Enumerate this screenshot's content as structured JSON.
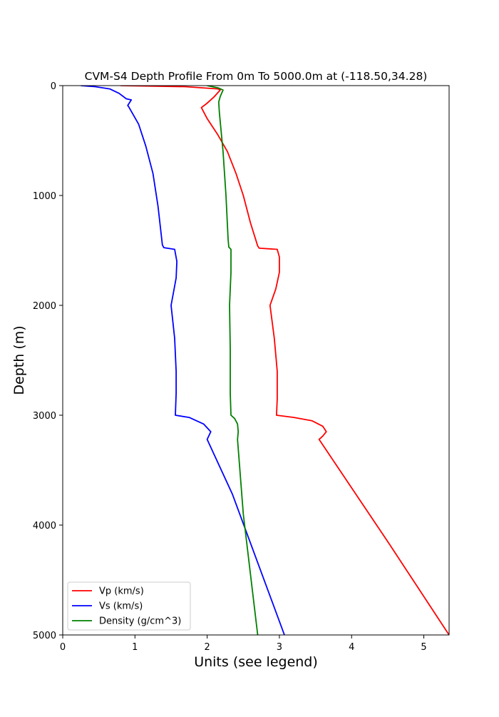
{
  "chart_data": {
    "type": "line",
    "title": "CVM-S4 Depth Profile From 0m To 5000.0m at (-118.50,34.28)",
    "xlabel": "Units (see legend)",
    "ylabel": "Depth (m)",
    "xlim": [
      0,
      5.35
    ],
    "ylim": [
      0,
      5000
    ],
    "y_inverted": true,
    "grid": false,
    "legend_position": "lower-left",
    "x_ticks": [
      0,
      1,
      2,
      3,
      4,
      5
    ],
    "x_tick_labels": [
      "0",
      "1",
      "2",
      "3",
      "4",
      "5"
    ],
    "y_ticks": [
      0,
      1000,
      2000,
      3000,
      4000,
      5000
    ],
    "y_tick_labels": [
      "0",
      "1000",
      "2000",
      "3000",
      "4000",
      "5000"
    ],
    "series": [
      {
        "name": "Vp (km/s)",
        "color": "#ff0000",
        "points": [
          [
            0.8,
            0
          ],
          [
            1.7,
            10
          ],
          [
            2.15,
            30
          ],
          [
            2.18,
            40
          ],
          [
            2.1,
            100
          ],
          [
            2.0,
            160
          ],
          [
            1.92,
            200
          ],
          [
            2.0,
            300
          ],
          [
            2.15,
            450
          ],
          [
            2.28,
            600
          ],
          [
            2.4,
            800
          ],
          [
            2.5,
            1000
          ],
          [
            2.6,
            1250
          ],
          [
            2.7,
            1460
          ],
          [
            2.72,
            1480
          ],
          [
            2.97,
            1490
          ],
          [
            3.0,
            1560
          ],
          [
            3.0,
            1700
          ],
          [
            2.95,
            1850
          ],
          [
            2.87,
            2000
          ],
          [
            2.93,
            2300
          ],
          [
            2.97,
            2600
          ],
          [
            2.97,
            2850
          ],
          [
            2.96,
            3000
          ],
          [
            3.2,
            3020
          ],
          [
            3.45,
            3050
          ],
          [
            3.6,
            3100
          ],
          [
            3.65,
            3150
          ],
          [
            3.6,
            3190
          ],
          [
            3.55,
            3220
          ],
          [
            4.5,
            4150
          ],
          [
            5.35,
            5000
          ]
        ]
      },
      {
        "name": "Vs (km/s)",
        "color": "#0000ff",
        "points": [
          [
            0.25,
            0
          ],
          [
            0.45,
            10
          ],
          [
            0.65,
            30
          ],
          [
            0.78,
            70
          ],
          [
            0.88,
            120
          ],
          [
            0.95,
            130
          ],
          [
            0.9,
            180
          ],
          [
            0.92,
            200
          ],
          [
            1.05,
            350
          ],
          [
            1.15,
            550
          ],
          [
            1.25,
            800
          ],
          [
            1.32,
            1100
          ],
          [
            1.38,
            1450
          ],
          [
            1.4,
            1475
          ],
          [
            1.55,
            1490
          ],
          [
            1.58,
            1600
          ],
          [
            1.57,
            1750
          ],
          [
            1.5,
            2000
          ],
          [
            1.55,
            2300
          ],
          [
            1.57,
            2600
          ],
          [
            1.57,
            2800
          ],
          [
            1.56,
            3000
          ],
          [
            1.75,
            3020
          ],
          [
            1.95,
            3080
          ],
          [
            2.05,
            3150
          ],
          [
            2.0,
            3220
          ],
          [
            2.35,
            3720
          ],
          [
            3.07,
            5000
          ]
        ]
      },
      {
        "name": "Density (g/cm^3)",
        "color": "#008000",
        "points": [
          [
            2.0,
            0
          ],
          [
            2.15,
            20
          ],
          [
            2.22,
            40
          ],
          [
            2.18,
            100
          ],
          [
            2.16,
            150
          ],
          [
            2.17,
            250
          ],
          [
            2.22,
            600
          ],
          [
            2.26,
            1000
          ],
          [
            2.29,
            1400
          ],
          [
            2.3,
            1470
          ],
          [
            2.33,
            1490
          ],
          [
            2.33,
            1700
          ],
          [
            2.31,
            2000
          ],
          [
            2.32,
            2400
          ],
          [
            2.32,
            2800
          ],
          [
            2.33,
            3000
          ],
          [
            2.38,
            3030
          ],
          [
            2.42,
            3080
          ],
          [
            2.43,
            3150
          ],
          [
            2.42,
            3220
          ],
          [
            2.5,
            3900
          ],
          [
            2.7,
            5000
          ]
        ]
      }
    ]
  }
}
